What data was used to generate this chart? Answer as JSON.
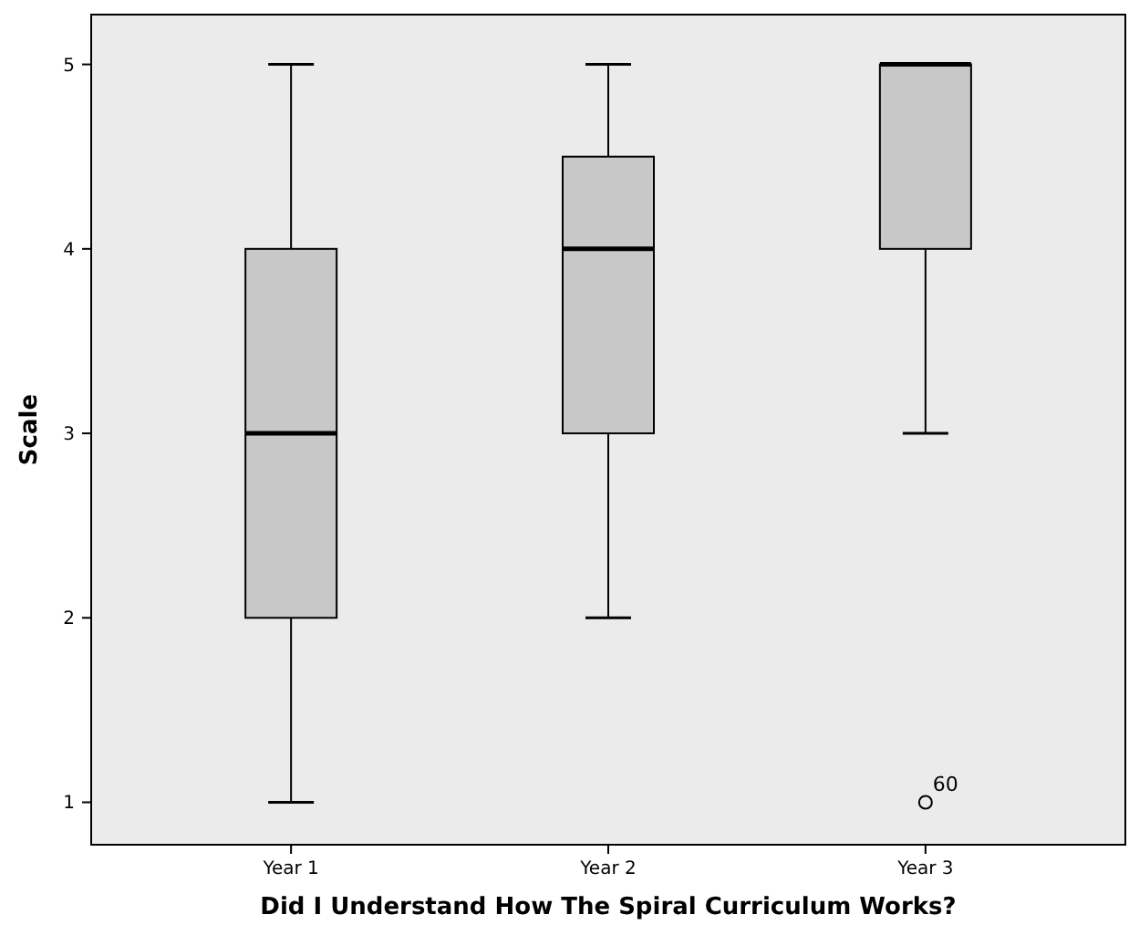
{
  "chart_data": {
    "type": "box",
    "xlabel": "Did I Understand How The Spiral Curriculum Works?",
    "ylabel": "Scale",
    "categories": [
      "Year 1",
      "Year 2",
      "Year 3"
    ],
    "boxes": [
      {
        "low": 1,
        "q1": 2,
        "median": 3,
        "q3": 4,
        "high": 5
      },
      {
        "low": 2,
        "q1": 3,
        "median": 4,
        "q3": 4.5,
        "high": 5
      },
      {
        "low": 3,
        "q1": 4,
        "median": 5,
        "q3": 5,
        "high": 5,
        "outliers": [
          1
        ]
      }
    ],
    "color": "#c8c8c8",
    "ylim": [
      0.77,
      5.27
    ],
    "yticks": [
      1,
      2,
      3,
      4,
      5
    ],
    "annotations": [
      "60"
    ]
  }
}
